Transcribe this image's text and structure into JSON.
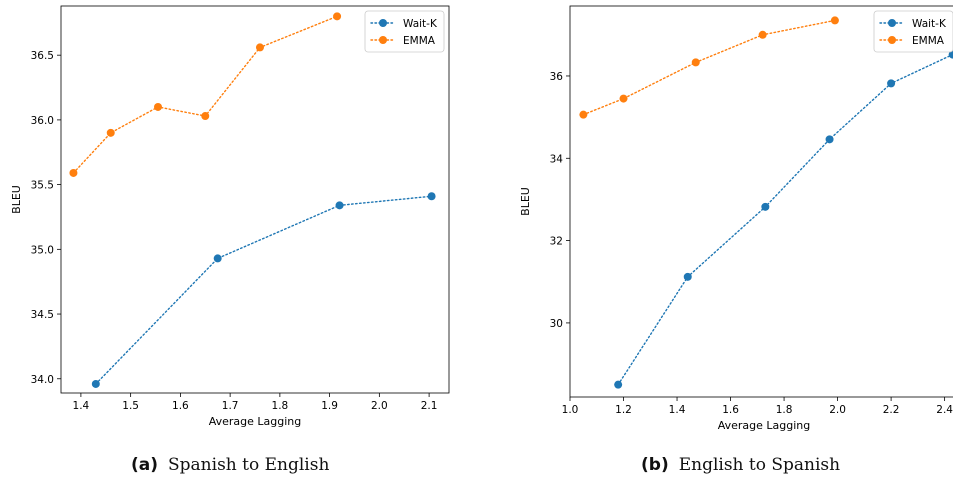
{
  "figure": {
    "captions": [
      {
        "label": "(a)",
        "text": "Spanish to English"
      },
      {
        "label": "(b)",
        "text": "English to Spanish"
      }
    ]
  },
  "chart_data": [
    {
      "type": "line",
      "title": "",
      "xlabel": "Average Lagging",
      "ylabel": "BLEU",
      "xlim": [
        1.36,
        2.14
      ],
      "ylim": [
        33.89,
        36.88
      ],
      "xticks": [
        1.4,
        1.5,
        1.6,
        1.7,
        1.8,
        1.9,
        2.0,
        2.1
      ],
      "yticks": [
        34.0,
        34.5,
        35.0,
        35.5,
        36.0,
        36.5
      ],
      "xtick_decimals": 1,
      "ytick_decimals": 1,
      "legend_position": "top-right",
      "grid": false,
      "series": [
        {
          "name": "Wait-K",
          "color": "#1f77b4",
          "x": [
            1.43,
            1.675,
            1.92,
            2.105
          ],
          "y": [
            33.96,
            34.93,
            35.34,
            35.41
          ]
        },
        {
          "name": "EMMA",
          "color": "#ff7f0e",
          "x": [
            1.385,
            1.46,
            1.555,
            1.65,
            1.76,
            1.915
          ],
          "y": [
            35.59,
            35.9,
            36.1,
            36.03,
            36.56,
            36.8
          ]
        }
      ]
    },
    {
      "type": "line",
      "title": "",
      "xlabel": "Average Lagging",
      "ylabel": "BLEU",
      "xlim": [
        1.0,
        2.45
      ],
      "ylim": [
        28.2,
        37.7
      ],
      "xticks": [
        1.0,
        1.2,
        1.4,
        1.6,
        1.8,
        2.0,
        2.2,
        2.4
      ],
      "yticks": [
        30,
        32,
        34,
        36
      ],
      "xtick_decimals": 1,
      "ytick_decimals": 0,
      "legend_position": "top-right",
      "grid": false,
      "series": [
        {
          "name": "Wait-K",
          "color": "#1f77b4",
          "x": [
            1.18,
            1.44,
            1.73,
            1.97,
            2.2,
            2.43
          ],
          "y": [
            28.5,
            31.12,
            32.82,
            34.46,
            35.82,
            36.52
          ]
        },
        {
          "name": "EMMA",
          "color": "#ff7f0e",
          "x": [
            1.05,
            1.2,
            1.47,
            1.72,
            1.99
          ],
          "y": [
            35.06,
            35.45,
            36.33,
            37.0,
            37.35
          ]
        }
      ]
    }
  ]
}
